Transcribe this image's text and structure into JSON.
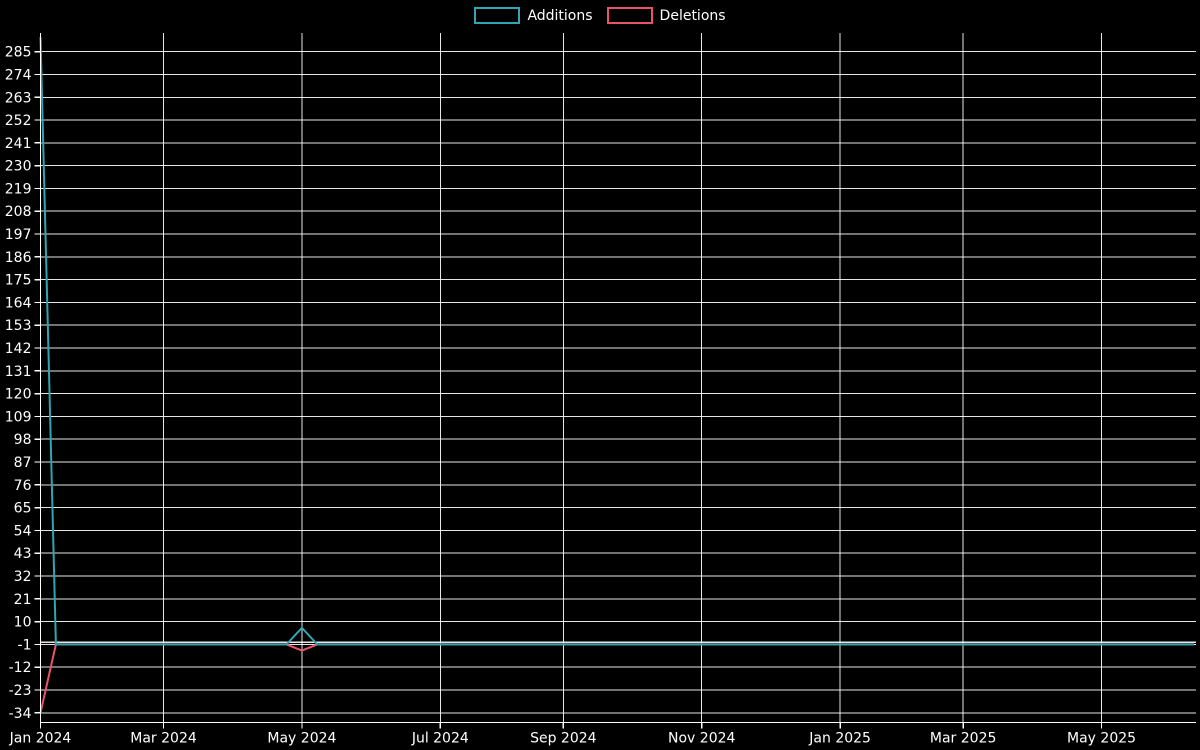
{
  "colors": {
    "background": "#000000",
    "text": "#ffffff",
    "grid": "#ffffff",
    "zero_line": "#ffffff",
    "additions": "#2fa6b2",
    "deletions": "#e9546b"
  },
  "chart_data": {
    "type": "line",
    "title": "",
    "xlabel": "",
    "ylabel": "",
    "grid": true,
    "legend_position": "top-center",
    "legend": [
      "Additions",
      "Deletions"
    ],
    "x_axis": {
      "kind": "time",
      "range_start": "2024-01-07",
      "range_end": "2025-06-16",
      "ticks": [
        {
          "date": "2024-01-07",
          "label": "Jan 2024"
        },
        {
          "date": "2024-03-03",
          "label": "Mar 2024"
        },
        {
          "date": "2024-05-05",
          "label": "May 2024"
        },
        {
          "date": "2024-07-07",
          "label": "Jul 2024"
        },
        {
          "date": "2024-09-01",
          "label": "Sep 2024"
        },
        {
          "date": "2024-11-03",
          "label": "Nov 2024"
        },
        {
          "date": "2025-01-05",
          "label": "Jan 2025"
        },
        {
          "date": "2025-03-02",
          "label": "Mar 2025"
        },
        {
          "date": "2025-05-04",
          "label": "May 2025"
        }
      ]
    },
    "y_axis": {
      "tick_min": -34,
      "tick_max": 285,
      "tick_step": 11,
      "range": [
        -36.5,
        294
      ],
      "zero_line": 0
    },
    "series": [
      {
        "name": "Additions",
        "color": "#2fa6b2",
        "points": [
          [
            "2024-01-07",
            292
          ],
          [
            "2024-01-14",
            -1
          ],
          [
            "2024-04-28",
            -1
          ],
          [
            "2024-05-05",
            7
          ],
          [
            "2024-05-12",
            -1
          ],
          [
            "2025-06-15",
            -1
          ]
        ]
      },
      {
        "name": "Deletions",
        "color": "#e9546b",
        "points": [
          [
            "2024-01-07",
            -34
          ],
          [
            "2024-01-14",
            -1
          ],
          [
            "2024-04-28",
            -1
          ],
          [
            "2024-05-05",
            -4
          ],
          [
            "2024-05-12",
            -1
          ],
          [
            "2025-06-15",
            -1
          ]
        ]
      }
    ]
  }
}
